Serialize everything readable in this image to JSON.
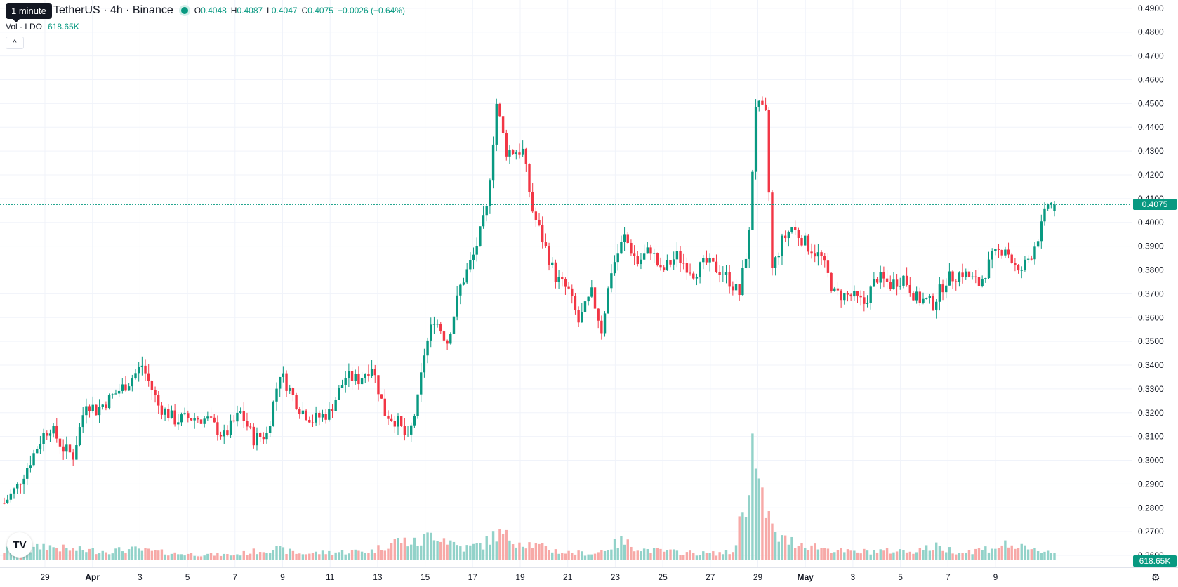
{
  "legend": {
    "tooltip": "1 minute",
    "symbol": "TetherUS · 4h · Binance",
    "o_label": "O",
    "o_value": "0.4048",
    "h_label": "H",
    "h_value": "0.4087",
    "l_label": "L",
    "l_value": "0.4047",
    "c_label": "C",
    "c_value": "0.4075",
    "change": "+0.0026 (+0.64%)"
  },
  "volume": {
    "label": "Vol · LDO",
    "value": "618.65K"
  },
  "last_price_tag": "0.4075",
  "last_volume_tag": "618.65K",
  "logo_text": "TV",
  "colors": {
    "up": "#089981",
    "down": "#f23645",
    "vol_up": "#92d2c9",
    "vol_down": "#f7a9a7"
  },
  "chart_data": {
    "type": "candlestick",
    "interval": "4h",
    "price_ticks": [
      "0.4900",
      "0.4800",
      "0.4700",
      "0.4600",
      "0.4500",
      "0.4400",
      "0.4300",
      "0.4200",
      "0.4100",
      "0.4000",
      "0.3900",
      "0.3800",
      "0.3700",
      "0.3600",
      "0.3500",
      "0.3400",
      "0.3300",
      "0.3200",
      "0.3100",
      "0.3000",
      "0.2900",
      "0.2800",
      "0.2700",
      "0.2600"
    ],
    "time_ticks": [
      "29",
      "Apr",
      "3",
      "5",
      "7",
      "9",
      "11",
      "13",
      "15",
      "17",
      "19",
      "21",
      "23",
      "25",
      "27",
      "29",
      "May",
      "3",
      "5",
      "7",
      "9"
    ],
    "bold_time_ticks": [
      "Apr",
      "May"
    ],
    "last_price": 0.4075,
    "ylim": [
      0.255,
      0.4935
    ],
    "anchors": [
      [
        0,
        0.282
      ],
      [
        4,
        0.289
      ],
      [
        8,
        0.3
      ],
      [
        12,
        0.311
      ],
      [
        14,
        0.314
      ],
      [
        18,
        0.305
      ],
      [
        21,
        0.302
      ],
      [
        25,
        0.325
      ],
      [
        28,
        0.321
      ],
      [
        33,
        0.327
      ],
      [
        38,
        0.333
      ],
      [
        42,
        0.34
      ],
      [
        47,
        0.323
      ],
      [
        52,
        0.317
      ],
      [
        58,
        0.318
      ],
      [
        62,
        0.317
      ],
      [
        67,
        0.31
      ],
      [
        72,
        0.32
      ],
      [
        76,
        0.309
      ],
      [
        80,
        0.311
      ],
      [
        84,
        0.337
      ],
      [
        90,
        0.322
      ],
      [
        94,
        0.317
      ],
      [
        99,
        0.32
      ],
      [
        104,
        0.335
      ],
      [
        108,
        0.334
      ],
      [
        112,
        0.34
      ],
      [
        116,
        0.32
      ],
      [
        120,
        0.316
      ],
      [
        123,
        0.308
      ],
      [
        126,
        0.325
      ],
      [
        128,
        0.345
      ],
      [
        131,
        0.36
      ],
      [
        135,
        0.35
      ],
      [
        139,
        0.373
      ],
      [
        143,
        0.386
      ],
      [
        147,
        0.405
      ],
      [
        150,
        0.45
      ],
      [
        153,
        0.43
      ],
      [
        158,
        0.43
      ],
      [
        161,
        0.405
      ],
      [
        164,
        0.393
      ],
      [
        168,
        0.377
      ],
      [
        172,
        0.371
      ],
      [
        175,
        0.358
      ],
      [
        179,
        0.37
      ],
      [
        182,
        0.355
      ],
      [
        185,
        0.38
      ],
      [
        189,
        0.394
      ],
      [
        193,
        0.383
      ],
      [
        197,
        0.389
      ],
      [
        200,
        0.379
      ],
      [
        205,
        0.386
      ],
      [
        210,
        0.379
      ],
      [
        214,
        0.383
      ],
      [
        219,
        0.379
      ],
      [
        224,
        0.37
      ],
      [
        227,
        0.395
      ],
      [
        229,
        0.45
      ],
      [
        232,
        0.445
      ],
      [
        234,
        0.38
      ],
      [
        237,
        0.392
      ],
      [
        240,
        0.398
      ],
      [
        245,
        0.39
      ],
      [
        249,
        0.385
      ],
      [
        253,
        0.37
      ],
      [
        258,
        0.369
      ],
      [
        262,
        0.366
      ],
      [
        266,
        0.377
      ],
      [
        270,
        0.374
      ],
      [
        274,
        0.377
      ],
      [
        278,
        0.368
      ],
      [
        283,
        0.366
      ],
      [
        287,
        0.376
      ],
      [
        292,
        0.379
      ],
      [
        297,
        0.374
      ],
      [
        301,
        0.385
      ],
      [
        305,
        0.39
      ],
      [
        309,
        0.378
      ],
      [
        313,
        0.387
      ],
      [
        316,
        0.398
      ],
      [
        318,
        0.408
      ],
      [
        320,
        0.4075
      ]
    ],
    "volume_anchors": [
      [
        0,
        14
      ],
      [
        3,
        20
      ],
      [
        8,
        15
      ],
      [
        12,
        22
      ],
      [
        20,
        16
      ],
      [
        30,
        14
      ],
      [
        40,
        16
      ],
      [
        52,
        10
      ],
      [
        60,
        9
      ],
      [
        70,
        8
      ],
      [
        82,
        18
      ],
      [
        90,
        10
      ],
      [
        100,
        12
      ],
      [
        112,
        14
      ],
      [
        120,
        30
      ],
      [
        126,
        25
      ],
      [
        131,
        42
      ],
      [
        136,
        28
      ],
      [
        140,
        18
      ],
      [
        146,
        24
      ],
      [
        150,
        40
      ],
      [
        156,
        30
      ],
      [
        162,
        22
      ],
      [
        170,
        12
      ],
      [
        180,
        10
      ],
      [
        188,
        28
      ],
      [
        195,
        16
      ],
      [
        205,
        12
      ],
      [
        215,
        10
      ],
      [
        222,
        12
      ],
      [
        226,
        95
      ],
      [
        228,
        168
      ],
      [
        230,
        95
      ],
      [
        232,
        78
      ],
      [
        235,
        35
      ],
      [
        238,
        30
      ],
      [
        244,
        24
      ],
      [
        250,
        18
      ],
      [
        258,
        12
      ],
      [
        266,
        14
      ],
      [
        276,
        14
      ],
      [
        284,
        20
      ],
      [
        292,
        12
      ],
      [
        300,
        18
      ],
      [
        306,
        24
      ],
      [
        312,
        15
      ],
      [
        318,
        14
      ],
      [
        320,
        12
      ]
    ]
  }
}
